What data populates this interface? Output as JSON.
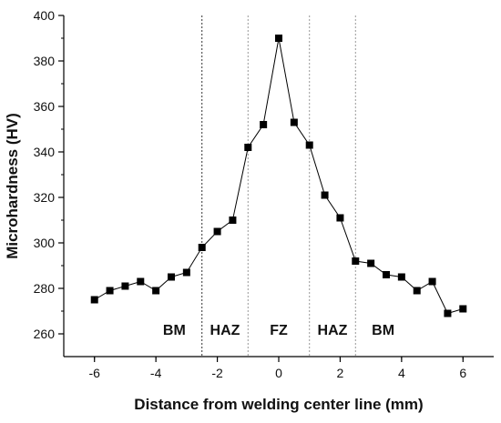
{
  "chart_data": {
    "type": "line",
    "xlabel": "Distance from welding center line (mm)",
    "ylabel": "Microhardness (HV)",
    "xlim": [
      -7,
      7
    ],
    "ylim": [
      250,
      400
    ],
    "xticks": [
      -6,
      -4,
      -2,
      0,
      2,
      4,
      6
    ],
    "yticks": [
      260,
      280,
      300,
      320,
      340,
      360,
      380,
      400
    ],
    "xtick_labels": [
      "-6",
      "-4",
      "-2",
      "0",
      "2",
      "4",
      "6"
    ],
    "ytick_labels": [
      "260",
      "280",
      "300",
      "320",
      "340",
      "360",
      "380",
      "400"
    ],
    "grid": false,
    "marker": "square",
    "colors": {
      "line": "#000000",
      "marker": "#000000",
      "boundary": "#999999",
      "boundary_center": "#333333"
    },
    "series": [
      {
        "x": [
          -6.0,
          -5.5,
          -5.0,
          -4.5,
          -4.0,
          -3.5,
          -3.0,
          -2.5,
          -2.0,
          -1.5,
          -1.0,
          -0.5,
          0.0,
          0.5,
          1.0,
          1.5,
          2.0,
          2.5,
          3.0,
          3.5,
          4.0,
          4.5,
          5.0,
          5.5,
          6.0
        ],
        "y": [
          275,
          279,
          281,
          283,
          279,
          285,
          287,
          298,
          305,
          310,
          342,
          352,
          390,
          353,
          343,
          321,
          311,
          292,
          291,
          286,
          285,
          279,
          283,
          269,
          271
        ]
      }
    ],
    "boundaries": [
      -2.5,
      -1.0,
      1.0,
      2.5
    ],
    "regions": [
      {
        "label": "BM",
        "x": -3.4
      },
      {
        "label": "HAZ",
        "x": -1.75
      },
      {
        "label": "FZ",
        "x": 0.0
      },
      {
        "label": "HAZ",
        "x": 1.75
      },
      {
        "label": "BM",
        "x": 3.4
      }
    ],
    "region_label_y": 262
  }
}
